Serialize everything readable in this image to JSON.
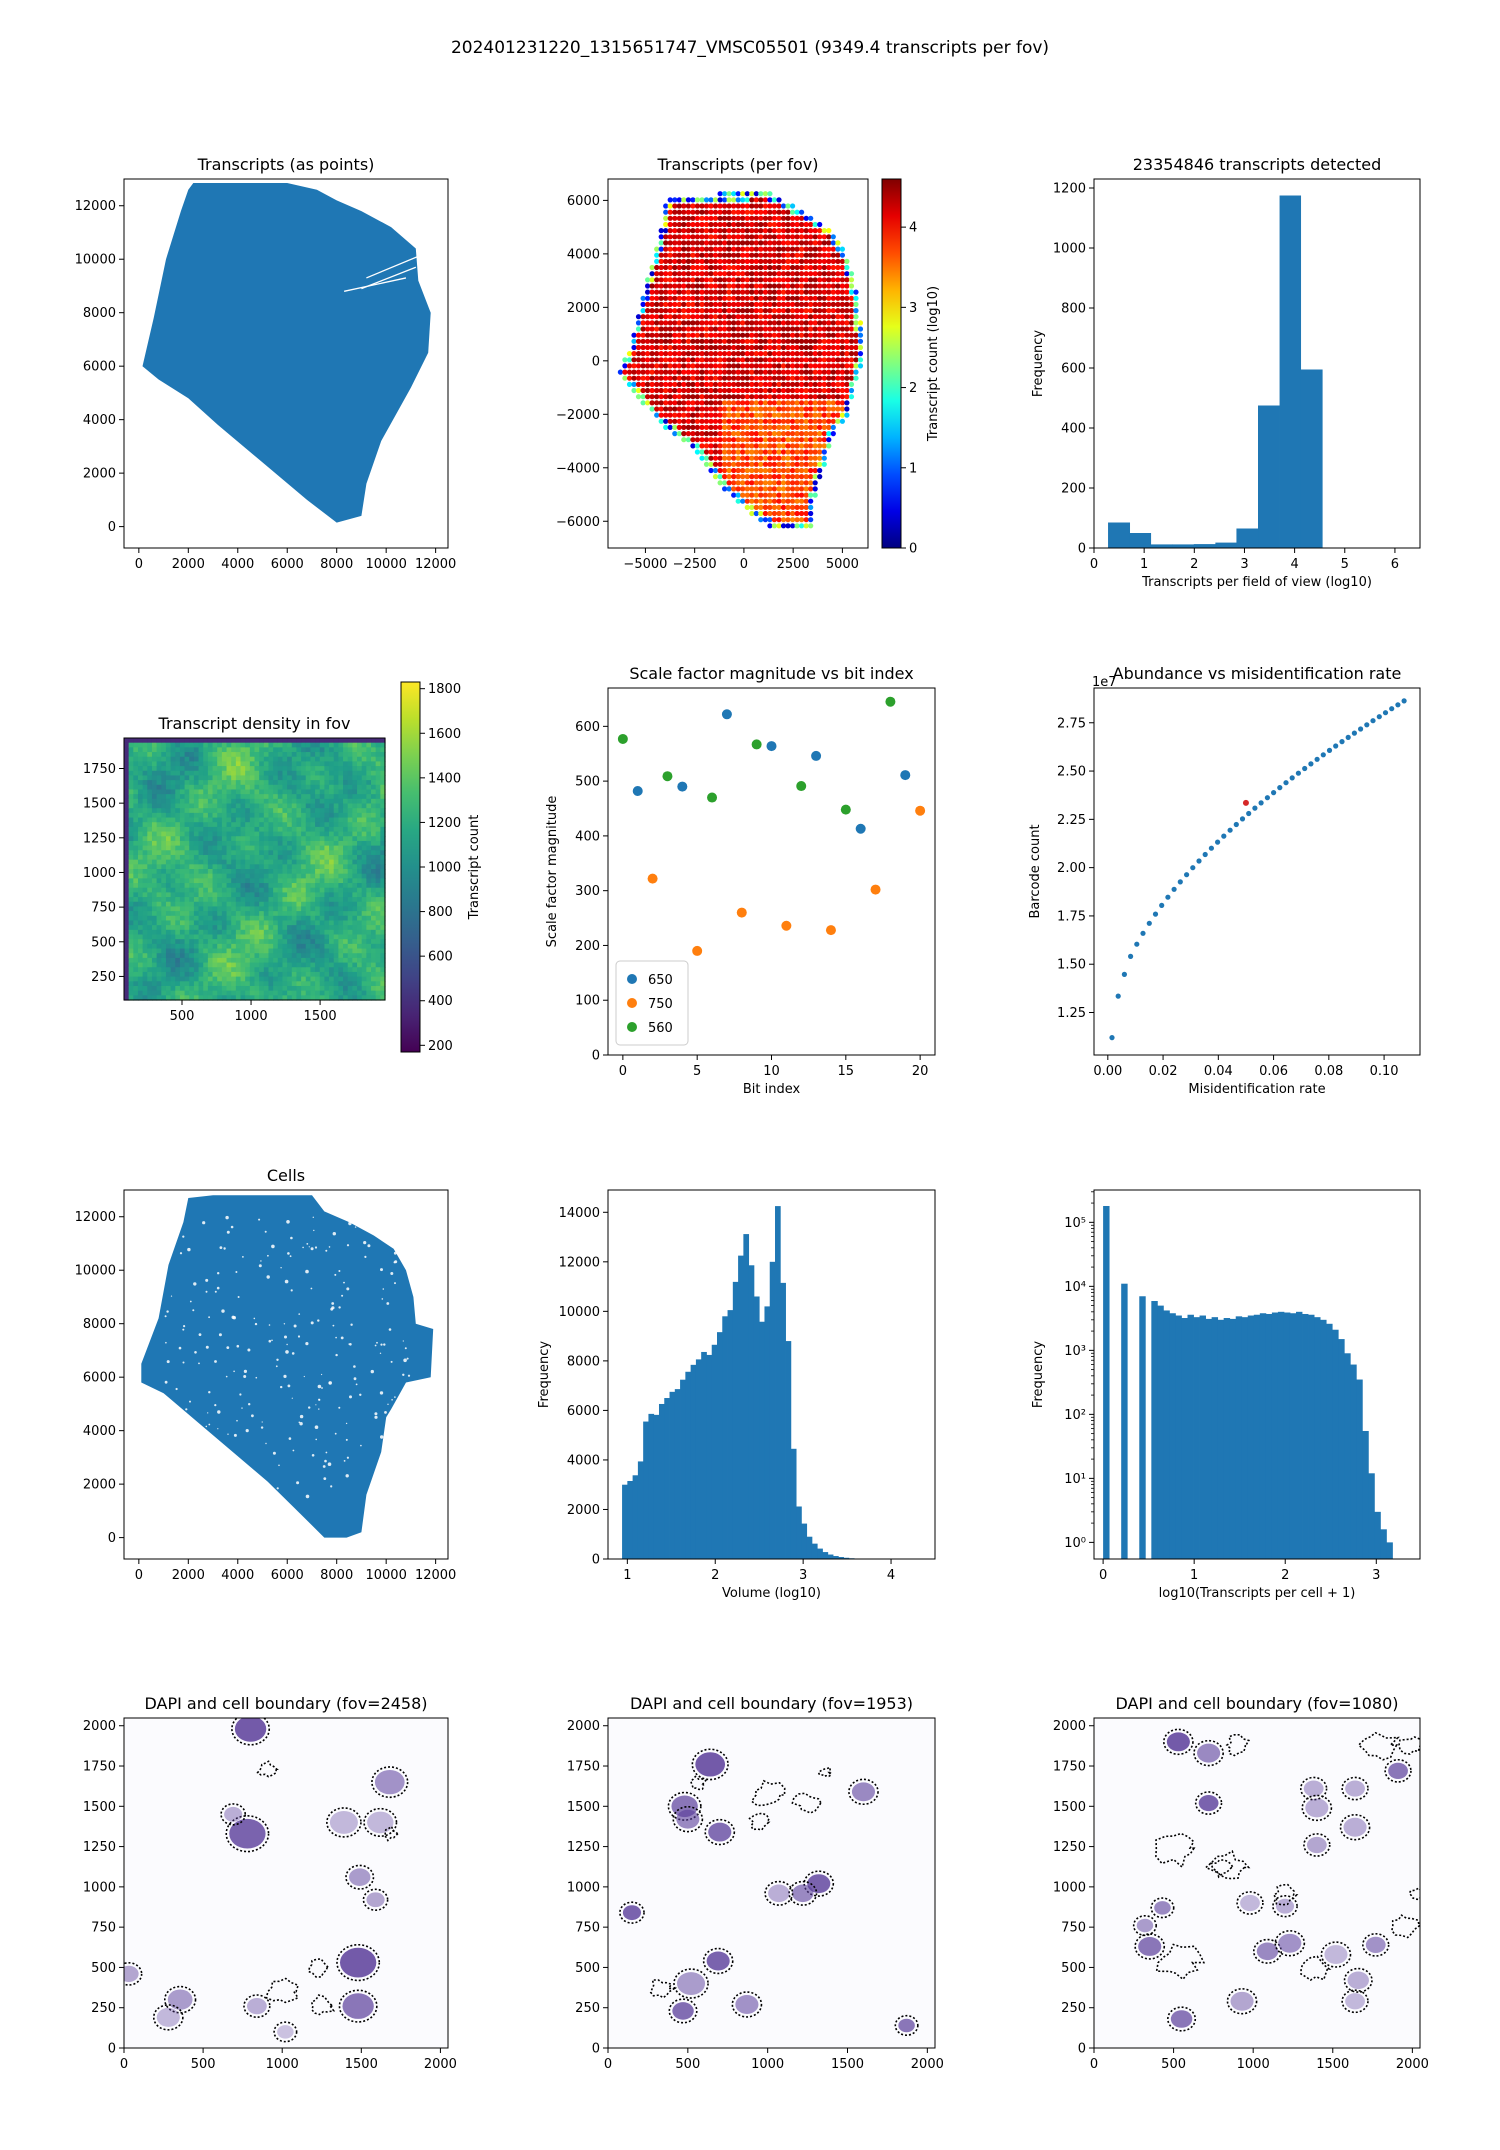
{
  "suptitle": "202401231220_1315651747_VMSC05501 (9349.4 transcripts per fov)",
  "colors": {
    "c0": "#1f77b4",
    "c1": "#ff7f0e",
    "c2": "#2ca02c",
    "dapi": "#5a3d9a"
  },
  "chart_data": [
    {
      "id": "transcripts_points",
      "type": "scatter",
      "title": "Transcripts (as points)",
      "xlabel": "",
      "ylabel": "",
      "xlim": [
        -600,
        12500
      ],
      "ylim": [
        -800,
        13000
      ],
      "xticks": [
        0,
        2000,
        4000,
        6000,
        8000,
        10000,
        12000
      ],
      "yticks": [
        0,
        2000,
        4000,
        6000,
        8000,
        10000,
        12000
      ],
      "series": [
        {
          "color": "#1f77b4",
          "outline": [
            [
              2200,
              12850
            ],
            [
              6000,
              12850
            ],
            [
              7200,
              12600
            ],
            [
              8000,
              12200
            ],
            [
              9000,
              11800
            ],
            [
              10200,
              11200
            ],
            [
              11200,
              10400
            ],
            [
              11300,
              9200
            ],
            [
              11800,
              8000
            ],
            [
              11700,
              6500
            ],
            [
              11000,
              5200
            ],
            [
              10400,
              4200
            ],
            [
              9800,
              3200
            ],
            [
              9200,
              1600
            ],
            [
              9000,
              400
            ],
            [
              8000,
              150
            ],
            [
              6800,
              1000
            ],
            [
              5000,
              2400
            ],
            [
              3200,
              3800
            ],
            [
              2000,
              4800
            ],
            [
              800,
              5500
            ],
            [
              150,
              6000
            ],
            [
              600,
              7800
            ],
            [
              1100,
              10000
            ],
            [
              1700,
              11800
            ],
            [
              2000,
              12600
            ]
          ]
        }
      ]
    },
    {
      "id": "transcripts_per_fov",
      "type": "scatter",
      "title": "Transcripts (per fov)",
      "xlabel": "",
      "ylabel": "",
      "xlim": [
        -6900,
        6300
      ],
      "ylim": [
        -7000,
        6800
      ],
      "xticks": [
        -5000,
        -2500,
        0,
        2500,
        5000
      ],
      "xtick_labels": [
        "−5000",
        "−2500",
        "0",
        "2500",
        "5000"
      ],
      "yticks": [
        -6000,
        -4000,
        -2000,
        0,
        2000,
        4000,
        6000
      ],
      "ytick_labels": [
        "−6000",
        "−4000",
        "−2000",
        "0",
        "2000",
        "4000",
        "6000"
      ],
      "colorbar": {
        "label": "Transcript count (log10)",
        "cmap": "jet",
        "range": [
          0,
          4.6
        ],
        "ticks": [
          0,
          1,
          2,
          3,
          4
        ]
      }
    },
    {
      "id": "fov_hist",
      "type": "bar",
      "title": "23354846 transcripts detected",
      "xlabel": "Transcripts per field of view (log10)",
      "ylabel": "Frequency",
      "xlim": [
        0,
        6.5
      ],
      "ylim": [
        0,
        1230
      ],
      "xticks": [
        0,
        1,
        2,
        3,
        4,
        5,
        6
      ],
      "yticks": [
        0,
        200,
        400,
        600,
        800,
        1000,
        1200
      ],
      "bin_edges": [
        0.28,
        0.71,
        1.13,
        1.56,
        1.99,
        2.42,
        2.84,
        3.27,
        3.7,
        4.12,
        4.55
      ],
      "values": [
        85,
        50,
        12,
        12,
        13,
        18,
        65,
        475,
        1175,
        595
      ]
    },
    {
      "id": "density_fov",
      "type": "heatmap",
      "title": "Transcript density in fov",
      "xlabel": "",
      "ylabel": "",
      "xlim": [
        80,
        1970
      ],
      "ylim": [
        80,
        1970
      ],
      "xticks": [
        500,
        1000,
        1500
      ],
      "yticks": [
        250,
        500,
        750,
        1000,
        1250,
        1500,
        1750
      ],
      "colorbar": {
        "label": "Transcript count",
        "cmap": "viridis",
        "range": [
          170,
          1830
        ],
        "ticks": [
          200,
          400,
          600,
          800,
          1000,
          1200,
          1400,
          1600,
          1800
        ]
      }
    },
    {
      "id": "scale_factor",
      "type": "scatter",
      "title": "Scale factor magnitude vs bit index",
      "xlabel": "Bit index",
      "ylabel": "Scale factor magnitude",
      "xlim": [
        -1,
        21
      ],
      "ylim": [
        0,
        670
      ],
      "xticks": [
        0,
        5,
        10,
        15,
        20
      ],
      "yticks": [
        0,
        100,
        200,
        300,
        400,
        500,
        600
      ],
      "legend": "lower left",
      "series": [
        {
          "name": "650",
          "color": "#1f77b4",
          "x": [
            1,
            4,
            7,
            10,
            13,
            16,
            19
          ],
          "y": [
            482,
            490,
            622,
            564,
            546,
            413,
            511
          ]
        },
        {
          "name": "750",
          "color": "#ff7f0e",
          "x": [
            2,
            5,
            8,
            11,
            14,
            17,
            20
          ],
          "y": [
            322,
            190,
            260,
            236,
            228,
            302,
            446
          ]
        },
        {
          "name": "560",
          "color": "#2ca02c",
          "x": [
            0,
            3,
            6,
            9,
            12,
            15,
            18
          ],
          "y": [
            577,
            509,
            470,
            567,
            491,
            448,
            645
          ]
        }
      ]
    },
    {
      "id": "abundance",
      "type": "scatter",
      "title": "Abundance vs misidentification rate",
      "xlabel": "Misidentification rate",
      "ylabel": "Barcode count",
      "offset_text": "1e7",
      "xlim": [
        -0.005,
        0.113
      ],
      "ylim": [
        1.03,
        2.93
      ],
      "xticks": [
        0.0,
        0.02,
        0.04,
        0.06,
        0.08,
        0.1
      ],
      "xtick_labels": [
        "0.00",
        "0.02",
        "0.04",
        "0.06",
        "0.08",
        "0.10"
      ],
      "yticks": [
        1.25,
        1.5,
        1.75,
        2.0,
        2.25,
        2.5,
        2.75
      ],
      "ytick_labels": [
        "1.25",
        "1.50",
        "1.75",
        "2.00",
        "2.25",
        "2.50",
        "2.75"
      ],
      "highlight": {
        "x": 0.05,
        "y": 2.335,
        "color": "#d62728"
      }
    },
    {
      "id": "cells",
      "type": "scatter",
      "title": "Cells",
      "xlabel": "",
      "ylabel": "",
      "xlim": [
        -600,
        12500
      ],
      "ylim": [
        -800,
        13000
      ],
      "xticks": [
        0,
        2000,
        4000,
        6000,
        8000,
        10000,
        12000
      ],
      "yticks": [
        0,
        2000,
        4000,
        6000,
        8000,
        10000,
        12000
      ],
      "series": [
        {
          "color": "#1f77b4",
          "outline": [
            [
              2000,
              12700
            ],
            [
              3000,
              12800
            ],
            [
              7000,
              12800
            ],
            [
              7500,
              12200
            ],
            [
              8500,
              11800
            ],
            [
              9500,
              11300
            ],
            [
              10300,
              10800
            ],
            [
              10800,
              10000
            ],
            [
              11100,
              9000
            ],
            [
              11200,
              8000
            ],
            [
              11900,
              7800
            ],
            [
              11800,
              6000
            ],
            [
              10800,
              5800
            ],
            [
              10200,
              4800
            ],
            [
              10000,
              4500
            ],
            [
              9800,
              3200
            ],
            [
              9200,
              1600
            ],
            [
              9000,
              200
            ],
            [
              8400,
              0
            ],
            [
              7500,
              0
            ],
            [
              6300,
              1100
            ],
            [
              5200,
              2100
            ],
            [
              3800,
              3200
            ],
            [
              2400,
              4300
            ],
            [
              1000,
              5400
            ],
            [
              100,
              5800
            ],
            [
              100,
              6500
            ],
            [
              800,
              8200
            ],
            [
              1200,
              10200
            ],
            [
              1800,
              11800
            ]
          ]
        }
      ]
    },
    {
      "id": "volume_hist",
      "type": "bar",
      "title": "",
      "xlabel": "Volume (log10)",
      "ylabel": "Frequency",
      "xlim": [
        0.78,
        4.5
      ],
      "ylim": [
        0,
        14900
      ],
      "xticks": [
        1,
        2,
        3,
        4
      ],
      "yticks": [
        0,
        2000,
        4000,
        6000,
        8000,
        10000,
        12000,
        14000
      ],
      "bin_start": 0.94,
      "bin_width": 0.06,
      "values": [
        3000,
        3150,
        3380,
        3940,
        5550,
        5860,
        5820,
        6260,
        6500,
        6750,
        6860,
        7240,
        7560,
        7840,
        8060,
        8360,
        8240,
        8650,
        9160,
        9800,
        10050,
        11190,
        12250,
        13120,
        11860,
        10600,
        9580,
        10200,
        12000,
        14250,
        11150,
        8800,
        4450,
        2120,
        1430,
        900,
        620,
        420,
        280,
        180,
        120,
        80,
        50,
        30,
        20,
        10,
        5
      ]
    },
    {
      "id": "transcripts_per_cell",
      "type": "bar",
      "title": "",
      "xlabel": "log10(Transcripts per cell + 1)",
      "ylabel": "Frequency",
      "yscale": "log",
      "xlim": [
        -0.1,
        3.48
      ],
      "ylim": [
        0.55,
        320000
      ],
      "xticks": [
        0,
        1,
        2,
        3
      ],
      "yticks": [
        1,
        10,
        100,
        1000,
        10000,
        100000
      ],
      "ytick_labels": [
        "10⁰",
        "10¹",
        "10²",
        "10³",
        "10⁴",
        "10⁵"
      ],
      "bin_start": 0.0,
      "bin_width": 0.0662,
      "values": [
        180000,
        0,
        0,
        11000,
        0,
        0,
        7000,
        0,
        5900,
        5000,
        4200,
        3800,
        3500,
        3200,
        3600,
        3300,
        3500,
        3100,
        3300,
        3000,
        3200,
        3100,
        3400,
        3300,
        3500,
        3600,
        3800,
        3700,
        3900,
        4000,
        3900,
        3800,
        4000,
        3700,
        3600,
        3300,
        3000,
        2600,
        2100,
        1500,
        900,
        600,
        350,
        55,
        12,
        3,
        1.6,
        1
      ]
    },
    {
      "id": "dapi_2458",
      "type": "heatmap",
      "title": "DAPI and cell boundary (fov=2458)",
      "xlim": [
        0,
        2048
      ],
      "ylim": [
        0,
        2048
      ],
      "xticks": [
        0,
        500,
        1000,
        1500,
        2000
      ],
      "yticks": [
        0,
        250,
        500,
        750,
        1000,
        1250,
        1500,
        1750,
        2000
      ]
    },
    {
      "id": "dapi_1953",
      "type": "heatmap",
      "title": "DAPI and cell boundary (fov=1953)",
      "xlim": [
        0,
        2048
      ],
      "ylim": [
        0,
        2048
      ],
      "xticks": [
        0,
        500,
        1000,
        1500,
        2000
      ],
      "yticks": [
        0,
        250,
        500,
        750,
        1000,
        1250,
        1500,
        1750,
        2000
      ]
    },
    {
      "id": "dapi_1080",
      "type": "heatmap",
      "title": "DAPI and cell boundary (fov=1080)",
      "xlim": [
        0,
        2048
      ],
      "ylim": [
        0,
        2048
      ],
      "xticks": [
        0,
        500,
        1000,
        1500,
        2000
      ],
      "yticks": [
        0,
        250,
        500,
        750,
        1000,
        1250,
        1500,
        1750,
        2000
      ]
    }
  ]
}
